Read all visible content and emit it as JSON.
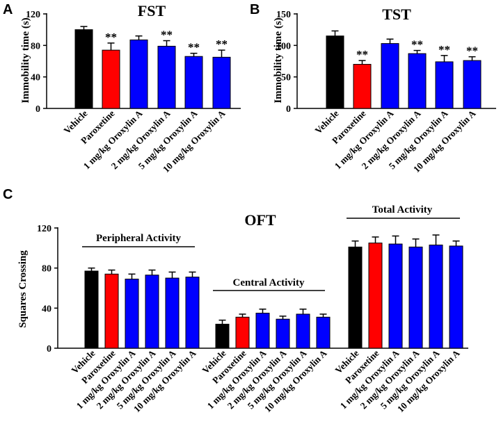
{
  "chart_data": [
    {
      "panel": "A",
      "type": "bar",
      "title": "FST",
      "ylabel": "Immobility time (s)",
      "xlabel": "",
      "ylim": [
        0,
        120
      ],
      "yticks": [
        0,
        40,
        80,
        120
      ],
      "categories": [
        "Vehicle",
        "Paroxetine",
        "1 mg/kg Oroxylin A",
        "2 mg/kg Oroxylin A",
        "5 mg/kg Oroxylin A",
        "10 mg/kg Oroxylin A"
      ],
      "values": [
        100,
        74,
        87,
        79,
        66,
        65
      ],
      "errors": [
        4,
        9,
        5,
        7,
        4,
        9
      ],
      "colors": [
        "#000000",
        "#ff0000",
        "#0000ff",
        "#0000ff",
        "#0000ff",
        "#0000ff"
      ],
      "significance": [
        "",
        "**",
        "",
        "**",
        "**",
        "**"
      ]
    },
    {
      "panel": "B",
      "type": "bar",
      "title": "TST",
      "ylabel": "Immobility time (s)",
      "xlabel": "",
      "ylim": [
        0,
        150
      ],
      "yticks": [
        0,
        50,
        100,
        150
      ],
      "categories": [
        "Vehicle",
        "Paroxetine",
        "1 mg/kg Oroxylin A",
        "2 mg/kg Oroxylin A",
        "5 mg/kg Oroxylin A",
        "10 mg/kg Oroxylin A"
      ],
      "values": [
        115,
        70,
        103,
        87,
        74,
        76
      ],
      "errors": [
        8,
        6,
        7,
        5,
        10,
        6
      ],
      "colors": [
        "#000000",
        "#ff0000",
        "#0000ff",
        "#0000ff",
        "#0000ff",
        "#0000ff"
      ],
      "significance": [
        "",
        "**",
        "",
        "**",
        "**",
        "**"
      ]
    },
    {
      "panel": "C",
      "type": "bar",
      "title": "OFT",
      "ylabel": "Squares Crossing",
      "xlabel": "",
      "ylim": [
        0,
        120
      ],
      "yticks": [
        0,
        40,
        80,
        120
      ],
      "categories": [
        "Vehicle",
        "Paroxetine",
        "1 mg/kg Oroxylin A",
        "2 mg/kg Oroxylin A",
        "5 mg/kg Oroxylin A",
        "10 mg/kg Oroxylin A"
      ],
      "colors": [
        "#000000",
        "#ff0000",
        "#0000ff",
        "#0000ff",
        "#0000ff",
        "#0000ff"
      ],
      "groups": [
        {
          "name": "Peripheral Activity",
          "values": [
            77,
            74,
            69,
            73,
            70,
            71
          ],
          "errors": [
            3,
            4,
            5,
            5,
            6,
            5
          ]
        },
        {
          "name": "Central Activity",
          "values": [
            24,
            31,
            35,
            29,
            34,
            31
          ],
          "errors": [
            4,
            3,
            4,
            3,
            5,
            3
          ]
        },
        {
          "name": "Total Activity",
          "values": [
            101,
            105,
            104,
            101,
            103,
            102
          ],
          "errors": [
            6,
            6,
            8,
            8,
            10,
            5
          ]
        }
      ]
    }
  ]
}
